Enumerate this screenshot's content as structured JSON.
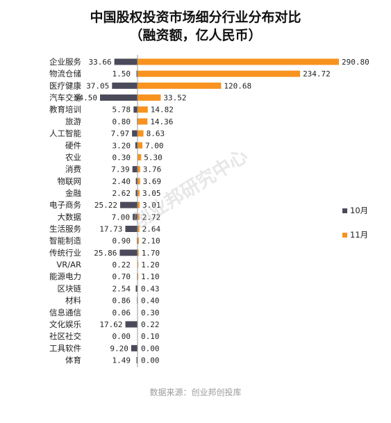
{
  "chart_data": {
    "type": "bar",
    "orientation": "horizontal-diverging",
    "title": "中国股权投资市场细分行业分布对比",
    "subtitle": "（融资额，亿人民币）",
    "categories": [
      "企业服务",
      "物流仓储",
      "医疗健康",
      "汽车交通",
      "教育培训",
      "旅游",
      "人工智能",
      "硬件",
      "农业",
      "消费",
      "物联网",
      "金融",
      "电子商务",
      "大数据",
      "生活服务",
      "智能制造",
      "传统行业",
      "VR/AR",
      "能源电力",
      "区块链",
      "材料",
      "信息通信",
      "文化娱乐",
      "社区社交",
      "工具软件",
      "体育"
    ],
    "series": [
      {
        "name": "10月",
        "color": "#4a4a5a",
        "values": [
          33.66,
          1.5,
          37.05,
          54.5,
          5.78,
          0.8,
          7.97,
          3.2,
          0.3,
          7.39,
          2.4,
          2.62,
          25.22,
          7.0,
          17.73,
          0.9,
          25.86,
          0.22,
          0.7,
          2.54,
          0.86,
          0.06,
          17.62,
          0.0,
          9.2,
          1.49
        ]
      },
      {
        "name": "11月",
        "color": "#f7931e",
        "values": [
          290.8,
          234.72,
          120.68,
          33.52,
          14.82,
          14.36,
          8.63,
          7.0,
          5.3,
          3.76,
          3.69,
          3.05,
          3.01,
          2.72,
          2.64,
          2.1,
          1.7,
          1.2,
          1.1,
          0.43,
          0.4,
          0.3,
          0.22,
          0.1,
          0.0,
          0.0
        ]
      }
    ],
    "legend_position": "right",
    "grid": false
  },
  "watermark": "创业邦研究中心",
  "source": "数据来源：创业邦创投库"
}
